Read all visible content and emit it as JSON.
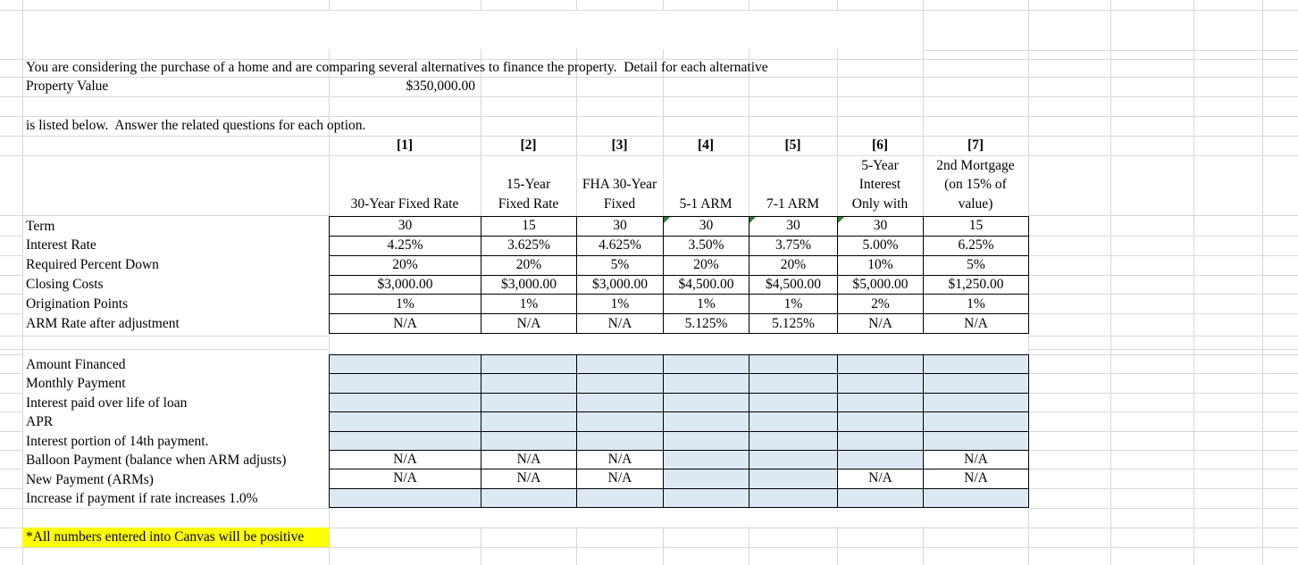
{
  "sheet": {
    "intro_lines": [
      "You are considering the purchase of a home and are comparing several alternatives to finance the property.  Detail for each alternative",
      "is listed below.  Answer the related questions for each option."
    ],
    "property": {
      "label": "Property Value",
      "value": "$350,000.00"
    },
    "option_numbers": [
      "[1]",
      "[2]",
      "[3]",
      "[4]",
      "[5]",
      "[6]",
      "[7]"
    ],
    "option_titles": [
      "30-Year Fixed Rate",
      "15-Year\nFixed Rate",
      "FHA 30-Year\nFixed",
      "5-1 ARM",
      "7-1 ARM",
      "5-Year\nInterest\nOnly with",
      "2nd Mortgage\n(on 15% of\nvalue)"
    ],
    "spec_rows": [
      {
        "label": "Term",
        "values": [
          "30",
          "15",
          "30",
          "30",
          "30",
          "30",
          "15"
        ],
        "error_flags": [
          false,
          false,
          false,
          true,
          true,
          true,
          false
        ]
      },
      {
        "label": "Interest Rate",
        "values": [
          "4.25%",
          "3.625%",
          "4.625%",
          "3.50%",
          "3.75%",
          "5.00%",
          "6.25%"
        ]
      },
      {
        "label": "Required Percent Down",
        "values": [
          "20%",
          "20%",
          "5%",
          "20%",
          "20%",
          "10%",
          "5%"
        ]
      },
      {
        "label": "Closing Costs",
        "values": [
          "$3,000.00",
          "$3,000.00",
          "$3,000.00",
          "$4,500.00",
          "$4,500.00",
          "$5,000.00",
          "$1,250.00"
        ]
      },
      {
        "label": "Origination Points",
        "values": [
          "1%",
          "1%",
          "1%",
          "1%",
          "1%",
          "2%",
          "1%"
        ]
      },
      {
        "label": "ARM Rate after adjustment",
        "values": [
          "N/A",
          "N/A",
          "N/A",
          "5.125%",
          "5.125%",
          "N/A",
          "N/A"
        ]
      }
    ],
    "answer_rows": [
      {
        "label": "Amount Financed",
        "values": [
          "",
          "",
          "",
          "",
          "",
          "",
          ""
        ]
      },
      {
        "label": "Monthly Payment",
        "values": [
          "",
          "",
          "",
          "",
          "",
          "",
          ""
        ]
      },
      {
        "label": "Interest paid over life of loan",
        "values": [
          "",
          "",
          "",
          "",
          "",
          "",
          ""
        ]
      },
      {
        "label": "APR",
        "values": [
          "",
          "",
          "",
          "",
          "",
          "",
          ""
        ]
      },
      {
        "label": "Interest portion of 14th payment.",
        "values": [
          "",
          "",
          "",
          "",
          "",
          "",
          ""
        ]
      },
      {
        "label": "Balloon Payment (balance when ARM adjusts)",
        "values": [
          "N/A",
          "N/A",
          "N/A",
          "",
          "",
          "",
          "N/A"
        ]
      },
      {
        "label": "New Payment (ARMs)",
        "values": [
          "N/A",
          "N/A",
          "N/A",
          "",
          "",
          "N/A",
          "N/A"
        ]
      },
      {
        "label": "Increase if payment if rate increases 1.0%",
        "values": [
          "",
          "",
          "",
          "",
          "",
          "",
          ""
        ]
      }
    ],
    "note": "*All numbers entered into Canvas will be positive",
    "colors": {
      "input_fill": "#dce9f5",
      "highlight": "#ffff00",
      "error_indicator": "#2e7d32",
      "gridline": "#d8d8d8"
    }
  }
}
